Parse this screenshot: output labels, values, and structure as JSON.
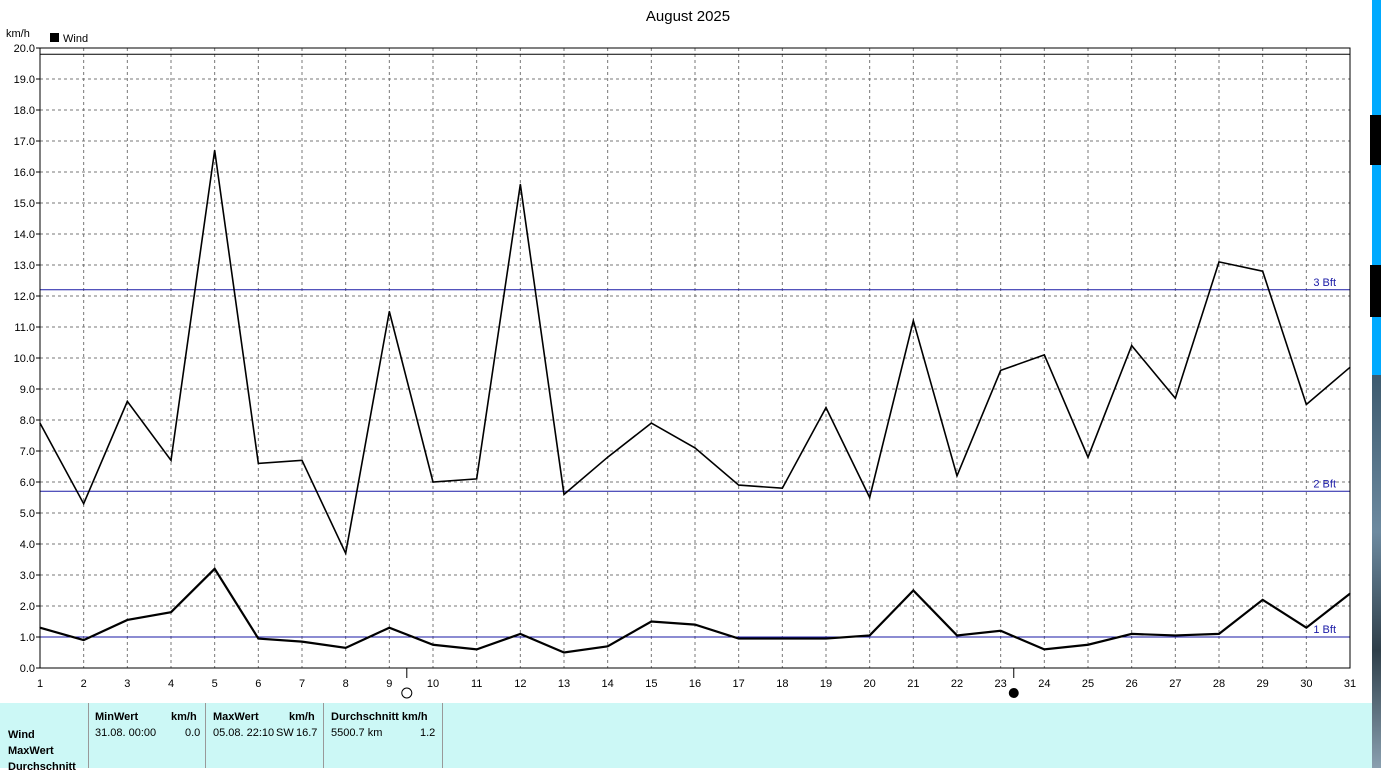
{
  "chart_data": {
    "type": "line",
    "title": "August 2025",
    "ylabel": "km/h",
    "legend": {
      "label": "Wind",
      "placement": "top-left"
    },
    "ylim": [
      0,
      20
    ],
    "yticks": [
      "0.0",
      "1.0",
      "2.0",
      "3.0",
      "4.0",
      "5.0",
      "6.0",
      "7.0",
      "8.0",
      "9.0",
      "10.0",
      "11.0",
      "12.0",
      "13.0",
      "14.0",
      "15.0",
      "16.0",
      "17.0",
      "18.0",
      "19.0",
      "20.0"
    ],
    "x": [
      1,
      2,
      3,
      4,
      5,
      6,
      7,
      8,
      9,
      10,
      11,
      12,
      13,
      14,
      15,
      16,
      17,
      18,
      19,
      20,
      21,
      22,
      23,
      24,
      25,
      26,
      27,
      28,
      29,
      30,
      31
    ],
    "grid": true,
    "series": [
      {
        "name": "",
        "values": [
          7.9,
          5.3,
          8.6,
          6.7,
          16.7,
          6.6,
          6.7,
          3.7,
          11.5,
          6.0,
          6.1,
          15.6,
          5.6,
          6.8,
          7.9,
          7.1,
          5.9,
          5.8,
          8.4,
          5.5,
          11.2,
          6.2,
          9.6,
          10.1,
          6.8,
          10.4,
          8.7,
          13.1,
          12.8,
          8.5,
          9.7
        ]
      },
      {
        "name": "",
        "values": [
          1.3,
          0.9,
          1.55,
          1.8,
          3.2,
          0.95,
          0.85,
          0.65,
          1.3,
          0.75,
          0.6,
          1.1,
          0.5,
          0.7,
          1.5,
          1.4,
          0.95,
          0.95,
          0.95,
          1.05,
          2.5,
          1.05,
          1.2,
          0.6,
          0.75,
          1.1,
          1.05,
          1.1,
          2.2,
          1.3,
          2.4
        ]
      }
    ],
    "reference_lines": [
      {
        "label": "3 Bft",
        "value": 12.2,
        "color": "#1a1aa6"
      },
      {
        "label": "2 Bft",
        "value": 5.7,
        "color": "#1a1aa6"
      },
      {
        "label": "1 Bft",
        "value": 1.0,
        "color": "#1a1aa6"
      },
      {
        "label": "",
        "value": 19.8,
        "color": "#000000"
      }
    ],
    "moon_phases": [
      {
        "day": 9.4,
        "phase": "full-moon-icon"
      },
      {
        "day": 23.3,
        "phase": "new-moon-icon"
      }
    ]
  },
  "stats": {
    "row_labels": [
      "Wind",
      "MaxWert",
      "Durchschnitt"
    ],
    "min": {
      "header": "MinWert",
      "unit": "km/h",
      "date": "31.08.  00:00",
      "value": "0.0"
    },
    "max": {
      "header": "MaxWert",
      "unit": "km/h",
      "date": "05.08.  22:10",
      "dir": "SW",
      "value": "16.7"
    },
    "avg": {
      "header": "Durchschnitt km/h",
      "distance": "5500.7 km",
      "value": "1.2"
    }
  }
}
